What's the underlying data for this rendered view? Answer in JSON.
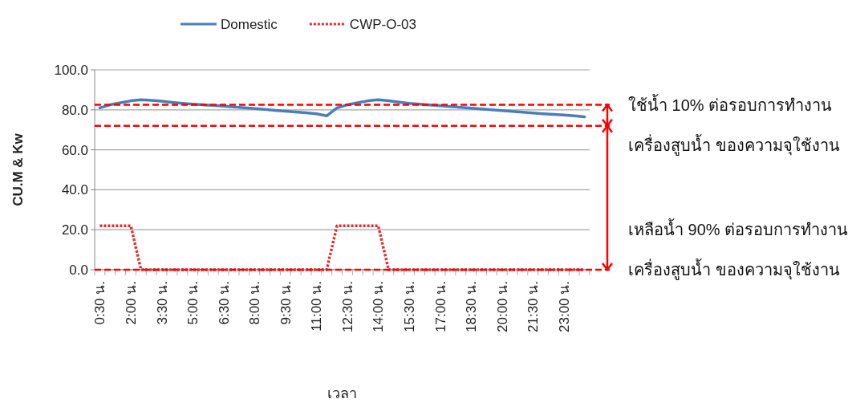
{
  "chart_data": {
    "type": "line",
    "xlabel": "เวลา",
    "ylabel": "CU.M & Kw",
    "categories": [
      "0:30 น.",
      null,
      null,
      "2:00 น.",
      null,
      null,
      "3:30 น.",
      null,
      null,
      "5:00 น.",
      null,
      null,
      "6:30 น.",
      null,
      null,
      "8:00 น.",
      null,
      null,
      "9:30 น.",
      null,
      null,
      "11:00 น.",
      null,
      null,
      "12:30 น.",
      null,
      null,
      "14:00 น.",
      null,
      null,
      "15:30 น.",
      null,
      null,
      "17:00 น.",
      null,
      null,
      "18:30 น.",
      null,
      null,
      "20:00 น.",
      null,
      null,
      "21:30 น.",
      null,
      null,
      "23:00 น.",
      null,
      null
    ],
    "series": [
      {
        "name": "Domestic",
        "color": "#4a7ebb",
        "line_style": "solid",
        "values": [
          81,
          82.5,
          83.5,
          84.5,
          85,
          84.7,
          84.3,
          83.7,
          83.2,
          82.8,
          82.5,
          82.2,
          81.8,
          81.4,
          81,
          80.6,
          80.2,
          79.7,
          79.3,
          78.9,
          78.5,
          78,
          77,
          81,
          82.5,
          83.5,
          84.5,
          85,
          84.5,
          83.8,
          83.2,
          82.8,
          82.4,
          82,
          81.6,
          81.2,
          80.8,
          80.4,
          80,
          79.6,
          79.2,
          78.8,
          78.4,
          78,
          77.7,
          77.4,
          77,
          76.5
        ]
      },
      {
        "name": "CWP-O-03",
        "color": "#e03030",
        "line_style": "dotted",
        "values": [
          22,
          22,
          22,
          22,
          0,
          0,
          0,
          0,
          0,
          0,
          0,
          0,
          0,
          0,
          0,
          0,
          0,
          0,
          0,
          0,
          0,
          0,
          0,
          22,
          22,
          22,
          22,
          22,
          0,
          0,
          0,
          0,
          0,
          0,
          0,
          0,
          0,
          0,
          0,
          0,
          0,
          0,
          0,
          0,
          0,
          0,
          0,
          0
        ]
      }
    ],
    "ylim": [
      0,
      100
    ],
    "yticks": [
      {
        "value": 0,
        "label": "0.0"
      },
      {
        "value": 20,
        "label": "20.0"
      },
      {
        "value": 40,
        "label": "40.0"
      },
      {
        "value": 60,
        "label": "60.0"
      },
      {
        "value": 80,
        "label": "80.0"
      },
      {
        "value": 100,
        "label": "100.0"
      }
    ],
    "grid": "y",
    "legend": "top",
    "marker": "none",
    "ref_lines": [
      {
        "axis": "y",
        "value": 82.5,
        "color": "#ff0000",
        "line_style": "dashed"
      },
      {
        "axis": "y",
        "value": 72,
        "color": "#ff0000",
        "line_style": "dashed"
      },
      {
        "axis": "y",
        "value": 0,
        "color": "#ff0000",
        "line_style": "dashed"
      }
    ],
    "annotations": [
      "ใช้น้ำ 10% ต่อรอบการทำงาน\nเครื่องสูบน้ำ ของความจุใช้งาน",
      "เหลือน้ำ 90% ต่อรอบการทำงาน\nเครื่องสูบน้ำ ของความจุใช้งาน"
    ]
  }
}
